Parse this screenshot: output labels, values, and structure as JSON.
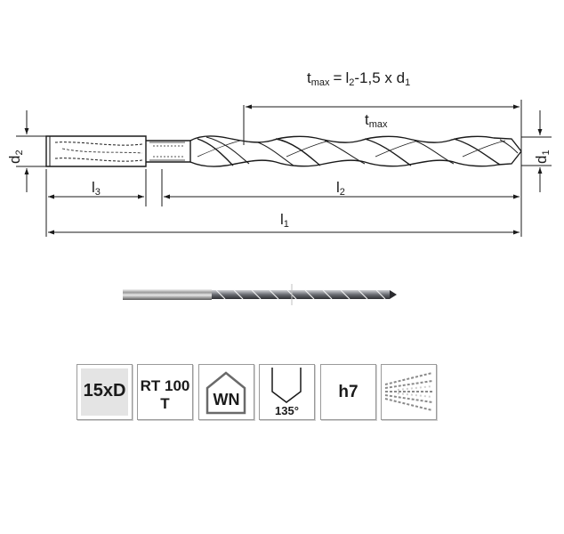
{
  "formula": {
    "t_symbol": "t",
    "t_sub": "max",
    "equals": "=",
    "l_symbol": "l",
    "l_sub": "2",
    "rest": "-1,5 x d",
    "d_sub": "1"
  },
  "dimensions": {
    "tmax": {
      "symbol": "t",
      "sub": "max"
    },
    "l1": {
      "symbol": "l",
      "sub": "1"
    },
    "l2": {
      "symbol": "l",
      "sub": "2"
    },
    "l3": {
      "symbol": "l",
      "sub": "3"
    },
    "d1": {
      "symbol": "d",
      "sub": "1"
    },
    "d2": {
      "symbol": "d",
      "sub": "2"
    }
  },
  "badges": {
    "length_ratio": "15xD",
    "coating_line1": "RT 100",
    "coating_line2": "T",
    "standard": "WN",
    "point_angle": "135°",
    "tolerance": "h7",
    "coolant_icon": "coolant-through-icon"
  },
  "colors": {
    "line": "#1a1a1a",
    "badge_border": "#9a9a9a",
    "badge_fill": "#d8d8d8"
  }
}
